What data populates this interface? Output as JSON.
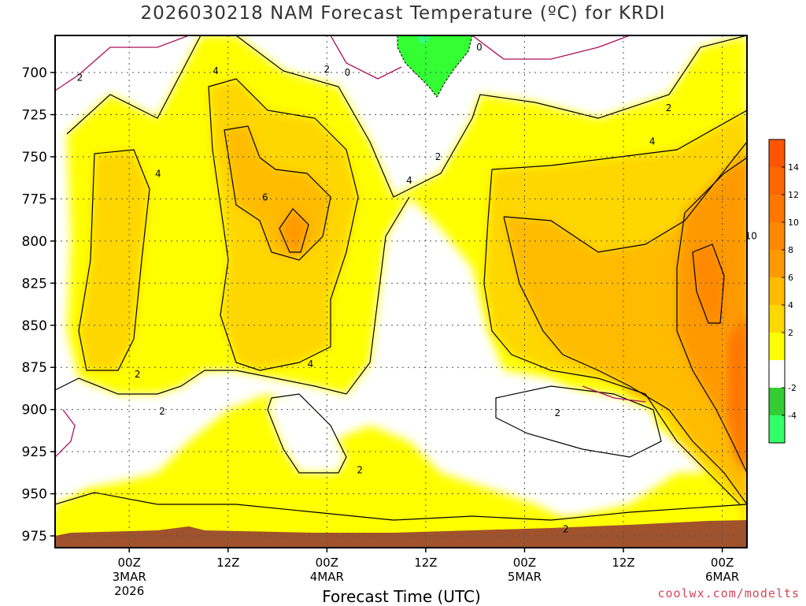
{
  "chart_data": {
    "type": "heatmap",
    "title": "2026030218 NAM Forecast Temperature (ºC) for KRDI",
    "xlabel": "Forecast Time (UTC)",
    "credit": "coolwx.com/modelts",
    "y_axis": {
      "unit": "hPa",
      "inverted": true,
      "ticks": [
        700,
        725,
        750,
        775,
        800,
        825,
        850,
        875,
        900,
        925,
        950,
        975
      ],
      "range": [
        678,
        982
      ]
    },
    "x_axis": {
      "range_hours": [
        -9,
        75
      ],
      "ticks": [
        {
          "hour": 0,
          "lines": [
            "00Z",
            "3MAR",
            "2026"
          ]
        },
        {
          "hour": 12,
          "lines": [
            "12Z"
          ]
        },
        {
          "hour": 24,
          "lines": [
            "00Z",
            "4MAR"
          ]
        },
        {
          "hour": 36,
          "lines": [
            "12Z"
          ]
        },
        {
          "hour": 48,
          "lines": [
            "00Z",
            "5MAR"
          ]
        },
        {
          "hour": 60,
          "lines": [
            "12Z"
          ]
        },
        {
          "hour": 72,
          "lines": [
            "00Z",
            "6MAR"
          ]
        }
      ]
    },
    "grid": true,
    "colorbar": {
      "position": "right",
      "levels": [
        -6,
        -4,
        -2,
        0,
        2,
        4,
        6,
        8,
        10,
        12,
        14,
        16
      ],
      "tick_labels": [
        "-4",
        "-2",
        "2",
        "4",
        "6",
        "8",
        "10",
        "12",
        "14"
      ],
      "tick_values": [
        -4,
        -2,
        2,
        4,
        6,
        8,
        10,
        12,
        14
      ],
      "colors": [
        "#33ff66",
        "#33cc33",
        "#ffffff",
        "#ffff00",
        "#ffd700",
        "#ffbb00",
        "#ff9900",
        "#ff8800",
        "#ff7700",
        "#ff6600",
        "#ff5500"
      ]
    },
    "ground_color": "#a0522d",
    "contour_labels": [
      {
        "text": "2",
        "hour": -6,
        "p": 703
      },
      {
        "text": "4",
        "hour": 10.5,
        "p": 699
      },
      {
        "text": "2",
        "hour": 24,
        "p": 698
      },
      {
        "text": "0",
        "hour": 26.5,
        "p": 700
      },
      {
        "text": "0",
        "hour": 42.5,
        "p": 685
      },
      {
        "text": "2",
        "hour": 65.5,
        "p": 721
      },
      {
        "text": "4",
        "hour": 63.5,
        "p": 741
      },
      {
        "text": "2",
        "hour": 37.5,
        "p": 750
      },
      {
        "text": "4",
        "hour": 3.5,
        "p": 760
      },
      {
        "text": "6",
        "hour": 16.5,
        "p": 774
      },
      {
        "text": "4",
        "hour": 34,
        "p": 764
      },
      {
        "text": "10",
        "hour": 75.5,
        "p": 797
      },
      {
        "text": "2",
        "hour": 1,
        "p": 879
      },
      {
        "text": "4",
        "hour": 22,
        "p": 873
      },
      {
        "text": "2",
        "hour": 4,
        "p": 901
      },
      {
        "text": "2",
        "hour": 52,
        "p": 902
      },
      {
        "text": "2",
        "hour": 28,
        "p": 936
      },
      {
        "text": "2",
        "hour": 53,
        "p": 971
      }
    ]
  }
}
